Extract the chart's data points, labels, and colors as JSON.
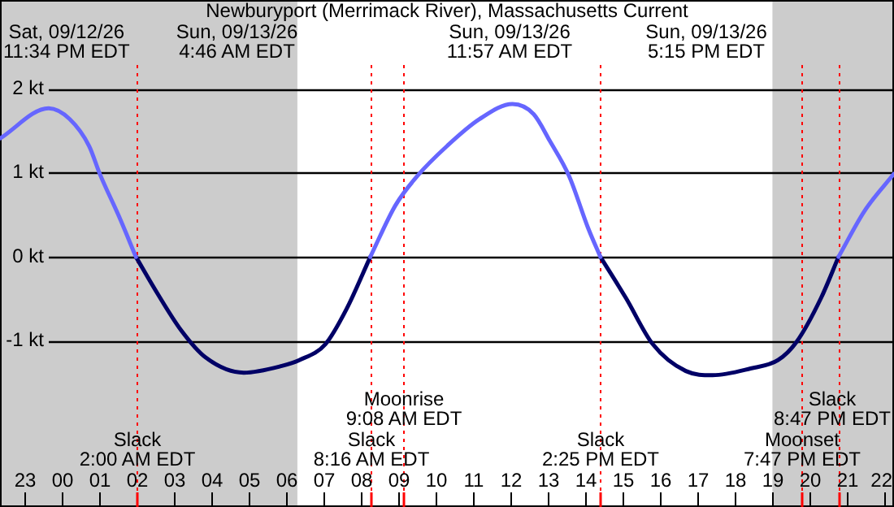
{
  "chart_data": {
    "type": "line",
    "title": "Newburyport (Merrimack River), Massachusetts Current",
    "xlim": [
      "--09-12T22:22",
      "--09-13T22:16"
    ],
    "ylim": [
      -2.98,
      3.06
    ],
    "xticks": [
      {
        "value": "--09-12T23:00",
        "label": "23"
      },
      {
        "value": "--09-13T00:00",
        "label": "00"
      },
      {
        "value": "--09-13T01:00",
        "label": "01"
      },
      {
        "value": "--09-13T02:00",
        "label": "02"
      },
      {
        "value": "--09-13T03:00",
        "label": "03"
      },
      {
        "value": "--09-13T04:00",
        "label": "04"
      },
      {
        "value": "--09-13T05:00",
        "label": "05"
      },
      {
        "value": "--09-13T06:00",
        "label": "06"
      },
      {
        "value": "--09-13T07:00",
        "label": "07"
      },
      {
        "value": "--09-13T08:00",
        "label": "08"
      },
      {
        "value": "--09-13T09:00",
        "label": "09"
      },
      {
        "value": "--09-13T10:00",
        "label": "10"
      },
      {
        "value": "--09-13T11:00",
        "label": "11"
      },
      {
        "value": "--09-13T12:00",
        "label": "12"
      },
      {
        "value": "--09-13T13:00",
        "label": "13"
      },
      {
        "value": "--09-13T14:00",
        "label": "14"
      },
      {
        "value": "--09-13T15:00",
        "label": "15"
      },
      {
        "value": "--09-13T16:00",
        "label": "16"
      },
      {
        "value": "--09-13T17:00",
        "label": "17"
      },
      {
        "value": "--09-13T18:00",
        "label": "18"
      },
      {
        "value": "--09-13T19:00",
        "label": "19"
      },
      {
        "value": "--09-13T20:00",
        "label": "20"
      },
      {
        "value": "--09-13T21:00",
        "label": "21"
      },
      {
        "value": "--09-13T22:00",
        "label": "22"
      }
    ],
    "yticks": [
      {
        "value": 2,
        "label": "2 kt"
      },
      {
        "value": 1,
        "label": "1 kt"
      },
      {
        "value": 0,
        "label": "0 kt"
      },
      {
        "value": -1,
        "label": "-1 kt"
      }
    ],
    "grid": "y",
    "legend": false,
    "marker": "none",
    "line_style": "solid",
    "series": [
      {
        "color": "#6666ff",
        "x": [
          "--09-12T22:22",
          "--09-12T23:40",
          "--09-13T00:14",
          "--09-13T00:45",
          "--09-13T01:02",
          "--09-13T01:33",
          "--09-13T02:00",
          "--09-13T05:00",
          "--09-13T08:16",
          "--09-13T08:56",
          "--09-13T09:31",
          "--09-13T10:19",
          "--09-13T11:11",
          "--09-13T12:04",
          "--09-13T12:38",
          "--09-13T13:04",
          "--09-13T13:35",
          "--09-13T14:05",
          "--09-13T14:25",
          "--09-13T17:24",
          "--09-13T20:47",
          "--09-13T21:29",
          "--09-13T22:16"
        ],
        "values": [
          1.41,
          1.77,
          1.64,
          1.32,
          0.99,
          0.48,
          0,
          null,
          0,
          0.61,
          0.96,
          1.32,
          1.64,
          1.82,
          1.7,
          1.38,
          0.96,
          0.35,
          0,
          null,
          0,
          0.55,
          0.99
        ]
      },
      {
        "color": "#000066",
        "x": [
          "--09-13T02:00",
          "--09-13T02:34",
          "--09-13T03:13",
          "--09-13T03:52",
          "--09-13T04:53",
          "--09-13T05:54",
          "--09-13T06:22",
          "--09-13T07:04",
          "--09-13T07:38",
          "--09-13T08:16",
          "--09-13T11:18",
          "--09-13T14:25",
          "--09-13T15:06",
          "--09-13T15:49",
          "--09-13T16:42",
          "--09-13T17:25",
          "--09-13T18:26",
          "--09-13T19:10",
          "--09-13T19:40",
          "--09-13T20:19",
          "--09-13T20:47"
        ],
        "values": [
          0,
          -0.43,
          -0.88,
          -1.2,
          -1.38,
          -1.3,
          -1.23,
          -1.04,
          -0.62,
          0,
          null,
          0,
          -0.49,
          -1.04,
          -1.36,
          -1.41,
          -1.33,
          -1.23,
          -1.01,
          -0.49,
          0
        ]
      }
    ],
    "bands": [
      {
        "axis": "x",
        "from": "--09-12T22:22",
        "to": "--09-13T06:19",
        "color": "#cccccc"
      },
      {
        "axis": "x",
        "from": "--09-13T19:01",
        "to": "--09-13T22:16",
        "color": "#cccccc"
      }
    ],
    "ref_lines": [
      {
        "axis": "x",
        "value": "--09-13T02:00",
        "label": "Slack\n2:00 AM EDT",
        "color": "#ff0000",
        "line_style": "dotted"
      },
      {
        "axis": "x",
        "value": "--09-13T08:16",
        "label": "Slack\n8:16 AM EDT",
        "color": "#ff0000",
        "line_style": "dotted"
      },
      {
        "axis": "x",
        "value": "--09-13T09:08",
        "label": "Moonrise\n9:08 AM EDT",
        "color": "#ff0000",
        "line_style": "dotted"
      },
      {
        "axis": "x",
        "value": "--09-13T14:25",
        "label": "Slack\n2:25 PM EDT",
        "color": "#ff0000",
        "line_style": "dotted"
      },
      {
        "axis": "x",
        "value": "--09-13T19:47",
        "label": "Moonset\n7:47 PM EDT",
        "color": "#ff0000",
        "line_style": "dotted"
      },
      {
        "axis": "x",
        "value": "--09-13T20:47",
        "label": "Slack\n8:47 PM EDT",
        "color": "#ff0000",
        "line_style": "dotted"
      }
    ],
    "annotations": [
      "Sat, 09/12/26\n11:34 PM EDT",
      "Sun, 09/13/26\n4:46 AM EDT",
      "Sun, 09/13/26\n11:57 AM EDT",
      "Sun, 09/13/26\n5:15 PM EDT"
    ]
  }
}
